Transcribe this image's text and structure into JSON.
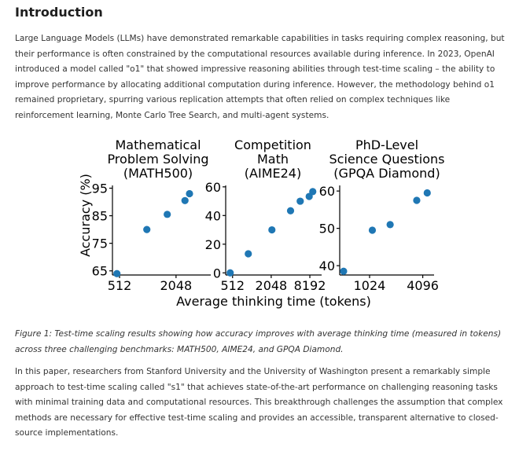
{
  "heading": "Introduction",
  "paragraph1": "Large Language Models (LLMs) have demonstrated remarkable capabilities in tasks requiring complex reasoning, but their performance is often constrained by the computational resources available during inference. In 2023, OpenAI introduced a model called \"o1\" that showed impressive reasoning abilities through test-time scaling – the ability to improve performance by allocating additional computation during inference. However, the methodology behind o1 remained proprietary, spurring various replication attempts that often relied on complex techniques like reinforcement learning, Monte Carlo Tree Search, and multi-agent systems.",
  "caption": "Figure 1: Test-time scaling results showing how accuracy improves with average thinking time (measured in tokens) across three challenging benchmarks: MATH500, AIME24, and GPQA Diamond.",
  "paragraph2": "In this paper, researchers from Stanford University and the University of Washington present a remarkably simple approach to test-time scaling called \"s1\" that achieves state-of-the-art performance on challenging reasoning tasks with minimal training data and computational resources. This breakthrough challenges the assumption that complex methods are necessary for effective test-time scaling and provides an accessible, transparent alternative to closed-source implementations.",
  "figure": {
    "ylabel": "Accuracy (%)",
    "xlabel": "Average thinking time (tokens)",
    "marker_color": "#1f77b4"
  },
  "chart_data": [
    {
      "type": "scatter",
      "title": "Mathematical Problem Solving (MATH500)",
      "title_lines": [
        "Mathematical",
        "Problem Solving",
        "(MATH500)"
      ],
      "xscale": "log2",
      "xlim": [
        430,
        4800
      ],
      "ylim": [
        63.5,
        96
      ],
      "xticks": [
        512,
        2048
      ],
      "yticks": [
        65,
        75,
        85,
        95
      ],
      "x": [
        480,
        1000,
        1650,
        2550,
        2850
      ],
      "y": [
        64,
        80,
        85.5,
        90.5,
        93
      ]
    },
    {
      "type": "scatter",
      "title": "Competition Math (AIME24)",
      "title_lines": [
        "Competition",
        "Math",
        "(AIME24)"
      ],
      "xscale": "log2",
      "xlim": [
        400,
        12500
      ],
      "ylim": [
        -1.5,
        61
      ],
      "xticks": [
        512,
        2048,
        8192
      ],
      "yticks": [
        0,
        20,
        40,
        60
      ],
      "x": [
        470,
        900,
        2100,
        4100,
        5800,
        8000,
        9100
      ],
      "y": [
        0,
        13.3,
        30,
        43.3,
        50,
        53.3,
        56.7
      ]
    },
    {
      "type": "scatter",
      "title": "PhD-Level Science Questions (GPQA Diamond)",
      "title_lines": [
        "PhD-Level",
        "Science Questions",
        "(GPQA Diamond)"
      ],
      "xscale": "log2",
      "xlim": [
        470,
        5500
      ],
      "ylim": [
        37.5,
        61.5
      ],
      "xticks": [
        1024,
        4096
      ],
      "yticks": [
        40,
        50,
        60
      ],
      "x": [
        520,
        1100,
        1750,
        3500,
        4600
      ],
      "y": [
        38.5,
        49.5,
        51,
        57.5,
        59.5
      ]
    }
  ]
}
